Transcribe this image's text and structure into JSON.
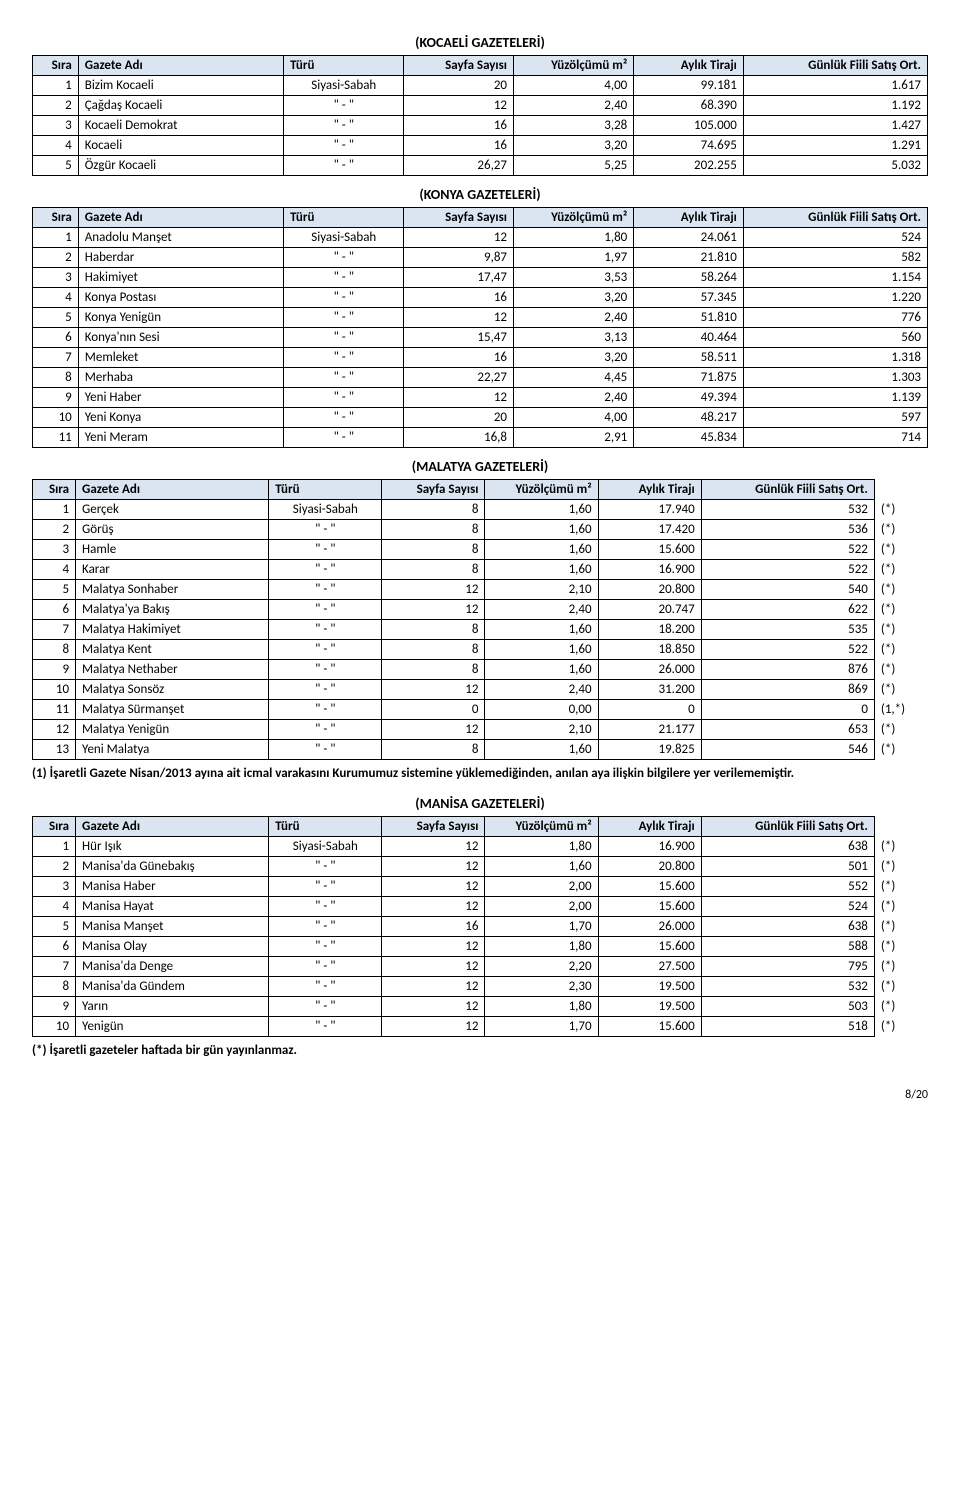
{
  "headers": {
    "sira": "Sıra",
    "ad": "Gazete Adı",
    "turu": "Türü",
    "sayfa": "Sayfa Sayısı",
    "yuz": "Yüzölçümü m²",
    "tiraj": "Aylık Tirajı",
    "satis": "Günlük Fiili Satış Ort."
  },
  "sections": [
    {
      "title": "(KOCAELİ GAZETELERİ)",
      "hasStar": false,
      "rows": [
        {
          "sira": "1",
          "ad": "Bizim Kocaeli",
          "turu": "Siyasi-Sabah",
          "sayfa": "20",
          "yuz": "4,00",
          "tiraj": "99.181",
          "satis": "1.617"
        },
        {
          "sira": "2",
          "ad": "Çağdaş Kocaeli",
          "turu": "\"   -   \"",
          "sayfa": "12",
          "yuz": "2,40",
          "tiraj": "68.390",
          "satis": "1.192"
        },
        {
          "sira": "3",
          "ad": "Kocaeli Demokrat",
          "turu": "\"   -   \"",
          "sayfa": "16",
          "yuz": "3,28",
          "tiraj": "105.000",
          "satis": "1.427"
        },
        {
          "sira": "4",
          "ad": "Kocaeli",
          "turu": "\"   -   \"",
          "sayfa": "16",
          "yuz": "3,20",
          "tiraj": "74.695",
          "satis": "1.291"
        },
        {
          "sira": "5",
          "ad": "Özgür Kocaeli",
          "turu": "\"   -   \"",
          "sayfa": "26,27",
          "yuz": "5,25",
          "tiraj": "202.255",
          "satis": "5.032"
        }
      ]
    },
    {
      "title": "(KONYA GAZETELERİ)",
      "hasStar": false,
      "rows": [
        {
          "sira": "1",
          "ad": "Anadolu Manşet",
          "turu": "Siyasi-Sabah",
          "sayfa": "12",
          "yuz": "1,80",
          "tiraj": "24.061",
          "satis": "524"
        },
        {
          "sira": "2",
          "ad": "Haberdar",
          "turu": "\"   -   \"",
          "sayfa": "9,87",
          "yuz": "1,97",
          "tiraj": "21.810",
          "satis": "582"
        },
        {
          "sira": "3",
          "ad": "Hakimiyet",
          "turu": "\"   -   \"",
          "sayfa": "17,47",
          "yuz": "3,53",
          "tiraj": "58.264",
          "satis": "1.154"
        },
        {
          "sira": "4",
          "ad": "Konya Postası",
          "turu": "\"   -   \"",
          "sayfa": "16",
          "yuz": "3,20",
          "tiraj": "57.345",
          "satis": "1.220"
        },
        {
          "sira": "5",
          "ad": "Konya Yenigün",
          "turu": "\"   -   \"",
          "sayfa": "12",
          "yuz": "2,40",
          "tiraj": "51.810",
          "satis": "776"
        },
        {
          "sira": "6",
          "ad": "Konya'nın Sesi",
          "turu": "\"   -   \"",
          "sayfa": "15,47",
          "yuz": "3,13",
          "tiraj": "40.464",
          "satis": "560"
        },
        {
          "sira": "7",
          "ad": "Memleket",
          "turu": "\"   -   \"",
          "sayfa": "16",
          "yuz": "3,20",
          "tiraj": "58.511",
          "satis": "1.318"
        },
        {
          "sira": "8",
          "ad": "Merhaba",
          "turu": "\"   -   \"",
          "sayfa": "22,27",
          "yuz": "4,45",
          "tiraj": "71.875",
          "satis": "1.303"
        },
        {
          "sira": "9",
          "ad": "Yeni Haber",
          "turu": "\"   -   \"",
          "sayfa": "12",
          "yuz": "2,40",
          "tiraj": "49.394",
          "satis": "1.139"
        },
        {
          "sira": "10",
          "ad": "Yeni Konya",
          "turu": "\"   -   \"",
          "sayfa": "20",
          "yuz": "4,00",
          "tiraj": "48.217",
          "satis": "597"
        },
        {
          "sira": "11",
          "ad": "Yeni Meram",
          "turu": "\"   -   \"",
          "sayfa": "16,8",
          "yuz": "2,91",
          "tiraj": "45.834",
          "satis": "714"
        }
      ]
    },
    {
      "title": "(MALATYA GAZETELERİ)",
      "hasStar": true,
      "rows": [
        {
          "sira": "1",
          "ad": "Gerçek",
          "turu": "Siyasi-Sabah",
          "sayfa": "8",
          "yuz": "1,60",
          "tiraj": "17.940",
          "satis": "532",
          "star": "(*)"
        },
        {
          "sira": "2",
          "ad": "Görüş",
          "turu": "\"   -   \"",
          "sayfa": "8",
          "yuz": "1,60",
          "tiraj": "17.420",
          "satis": "536",
          "star": "(*)"
        },
        {
          "sira": "3",
          "ad": "Hamle",
          "turu": "\"   -   \"",
          "sayfa": "8",
          "yuz": "1,60",
          "tiraj": "15.600",
          "satis": "522",
          "star": "(*)"
        },
        {
          "sira": "4",
          "ad": "Karar",
          "turu": "\"   -   \"",
          "sayfa": "8",
          "yuz": "1,60",
          "tiraj": "16.900",
          "satis": "522",
          "star": "(*)"
        },
        {
          "sira": "5",
          "ad": "Malatya Sonhaber",
          "turu": "\"   -   \"",
          "sayfa": "12",
          "yuz": "2,10",
          "tiraj": "20.800",
          "satis": "540",
          "star": "(*)"
        },
        {
          "sira": "6",
          "ad": "Malatya'ya Bakış",
          "turu": "\"   -   \"",
          "sayfa": "12",
          "yuz": "2,40",
          "tiraj": "20.747",
          "satis": "622",
          "star": "(*)"
        },
        {
          "sira": "7",
          "ad": "Malatya Hakimiyet",
          "turu": "\"   -   \"",
          "sayfa": "8",
          "yuz": "1,60",
          "tiraj": "18.200",
          "satis": "535",
          "star": "(*)"
        },
        {
          "sira": "8",
          "ad": "Malatya Kent",
          "turu": "\"   -   \"",
          "sayfa": "8",
          "yuz": "1,60",
          "tiraj": "18.850",
          "satis": "522",
          "star": "(*)"
        },
        {
          "sira": "9",
          "ad": "Malatya Nethaber",
          "turu": "\"   -   \"",
          "sayfa": "8",
          "yuz": "1,60",
          "tiraj": "26.000",
          "satis": "876",
          "star": "(*)"
        },
        {
          "sira": "10",
          "ad": "Malatya Sonsöz",
          "turu": "\"   -   \"",
          "sayfa": "12",
          "yuz": "2,40",
          "tiraj": "31.200",
          "satis": "869",
          "star": "(*)"
        },
        {
          "sira": "11",
          "ad": "Malatya Sürmanşet",
          "turu": "\"   -   \"",
          "sayfa": "0",
          "yuz": "0,00",
          "tiraj": "0",
          "satis": "0",
          "star": "(1,*)"
        },
        {
          "sira": "12",
          "ad": "Malatya Yenigün",
          "turu": "\"   -   \"",
          "sayfa": "12",
          "yuz": "2,10",
          "tiraj": "21.177",
          "satis": "653",
          "star": "(*)"
        },
        {
          "sira": "13",
          "ad": "Yeni Malatya",
          "turu": "\"   -   \"",
          "sayfa": "8",
          "yuz": "1,60",
          "tiraj": "19.825",
          "satis": "546",
          "star": "(*)"
        }
      ],
      "footnote": "(1) İşaretli Gazete Nisan/2013 ayına ait icmal varakasını Kurumumuz sistemine yüklemediğinden, anılan aya ilişkin bilgilere yer verilememiştir."
    },
    {
      "title": "(MANİSA GAZETELERİ)",
      "hasStar": true,
      "rows": [
        {
          "sira": "1",
          "ad": "Hür Işık",
          "turu": "Siyasi-Sabah",
          "sayfa": "12",
          "yuz": "1,80",
          "tiraj": "16.900",
          "satis": "638",
          "star": "(*)"
        },
        {
          "sira": "2",
          "ad": "Manisa'da Günebakış",
          "turu": "\"   -   \"",
          "sayfa": "12",
          "yuz": "1,60",
          "tiraj": "20.800",
          "satis": "501",
          "star": "(*)"
        },
        {
          "sira": "3",
          "ad": "Manisa Haber",
          "turu": "\"   -   \"",
          "sayfa": "12",
          "yuz": "2,00",
          "tiraj": "15.600",
          "satis": "552",
          "star": "(*)"
        },
        {
          "sira": "4",
          "ad": "Manisa Hayat",
          "turu": "\"   -   \"",
          "sayfa": "12",
          "yuz": "2,00",
          "tiraj": "15.600",
          "satis": "524",
          "star": "(*)"
        },
        {
          "sira": "5",
          "ad": "Manisa Manşet",
          "turu": "\"   -   \"",
          "sayfa": "16",
          "yuz": "1,70",
          "tiraj": "26.000",
          "satis": "638",
          "star": "(*)"
        },
        {
          "sira": "6",
          "ad": "Manisa Olay",
          "turu": "\"   -   \"",
          "sayfa": "12",
          "yuz": "1,80",
          "tiraj": "15.600",
          "satis": "588",
          "star": "(*)"
        },
        {
          "sira": "7",
          "ad": "Manisa'da Denge",
          "turu": "\"   -   \"",
          "sayfa": "12",
          "yuz": "2,20",
          "tiraj": "27.500",
          "satis": "795",
          "star": "(*)"
        },
        {
          "sira": "8",
          "ad": "Manisa'da Gündem",
          "turu": "\"   -   \"",
          "sayfa": "12",
          "yuz": "2,30",
          "tiraj": "19.500",
          "satis": "532",
          "star": "(*)"
        },
        {
          "sira": "9",
          "ad": "Yarın",
          "turu": "\"   -   \"",
          "sayfa": "12",
          "yuz": "1,80",
          "tiraj": "19.500",
          "satis": "503",
          "star": "(*)"
        },
        {
          "sira": "10",
          "ad": "Yenigün",
          "turu": "\"   -   \"",
          "sayfa": "12",
          "yuz": "1,70",
          "tiraj": "15.600",
          "satis": "518",
          "star": "(*)"
        }
      ],
      "footnote": "(*) İşaretli gazeteler haftada bir gün yayınlanmaz."
    }
  ],
  "pageNumber": "8/20"
}
